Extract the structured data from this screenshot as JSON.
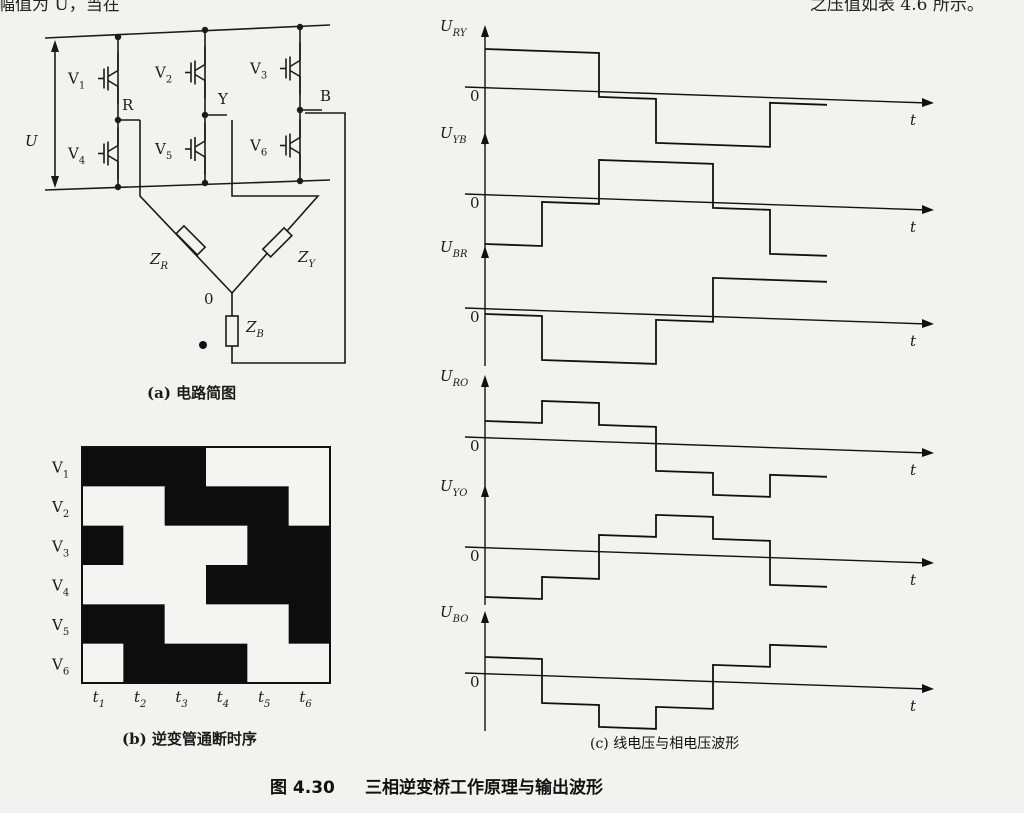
{
  "header": {
    "left_text": "幅值为 U，当在",
    "right_text": "之压值如表 4.6 所示。"
  },
  "circuit": {
    "supply_label": "U",
    "transistors": [
      "V1",
      "V2",
      "V3",
      "V4",
      "V5",
      "V6"
    ],
    "nodes": [
      "R",
      "Y",
      "B"
    ],
    "neutral": "0",
    "loads": [
      {
        "name": "Z",
        "sub": "R"
      },
      {
        "name": "Z",
        "sub": "Y"
      },
      {
        "name": "Z",
        "sub": "B"
      }
    ]
  },
  "captions": {
    "a": "(a) 电路简图",
    "b": "(b) 逆变管通断时序",
    "c": "(c) 线电压与相电压波形",
    "figure_number": "图 4.30",
    "figure_title": "三相逆变桥工作原理与输出波形"
  },
  "timing": {
    "rows": [
      {
        "label": "V",
        "sub": "1",
        "on": [
          1,
          1,
          1,
          0,
          0,
          0
        ]
      },
      {
        "label": "V",
        "sub": "2",
        "on": [
          0,
          0,
          1,
          1,
          1,
          0
        ]
      },
      {
        "label": "V",
        "sub": "3",
        "on": [
          1,
          0,
          0,
          0,
          1,
          1
        ]
      },
      {
        "label": "V",
        "sub": "4",
        "on": [
          0,
          0,
          0,
          1,
          1,
          1
        ]
      },
      {
        "label": "V",
        "sub": "5",
        "on": [
          1,
          1,
          0,
          0,
          0,
          1
        ]
      },
      {
        "label": "V",
        "sub": "6",
        "on": [
          0,
          1,
          1,
          1,
          0,
          0
        ]
      }
    ],
    "time_labels": [
      {
        "t": "t",
        "sub": "1"
      },
      {
        "t": "t",
        "sub": "2"
      },
      {
        "t": "t",
        "sub": "3"
      },
      {
        "t": "t",
        "sub": "4"
      },
      {
        "t": "t",
        "sub": "5"
      },
      {
        "t": "t",
        "sub": "6"
      }
    ]
  },
  "waveforms": [
    {
      "name": "U",
      "sub": "RY",
      "levels": [
        1,
        1,
        0,
        -1,
        -1,
        0
      ]
    },
    {
      "name": "U",
      "sub": "YB",
      "levels": [
        -1,
        0,
        1,
        1,
        0,
        -1
      ]
    },
    {
      "name": "U",
      "sub": "BR",
      "levels": [
        0,
        -1,
        -1,
        0,
        1,
        1
      ]
    },
    {
      "name": "U",
      "sub": "RO",
      "levels": [
        1,
        2,
        1,
        -1,
        -2,
        -1
      ]
    },
    {
      "name": "U",
      "sub": "YO",
      "levels": [
        -2,
        -1,
        1,
        2,
        1,
        -1
      ]
    },
    {
      "name": "U",
      "sub": "BO",
      "levels": [
        1,
        -1,
        -2,
        -1,
        1,
        2
      ]
    }
  ],
  "axis_labels": {
    "zero": "0",
    "time": "t"
  }
}
